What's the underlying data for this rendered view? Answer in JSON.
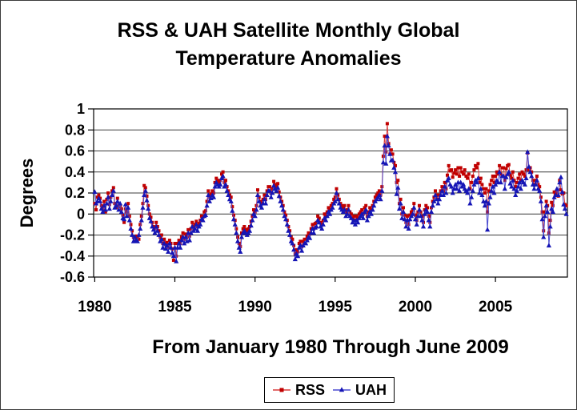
{
  "figure": {
    "title_line1": "RSS & UAH Satellite Monthly Global",
    "title_line2": "Temperature Anomalies",
    "y_axis_title": "Degrees",
    "x_axis_title": "From January 1980 Through June 2009"
  },
  "legend": {
    "items": [
      {
        "label": "RSS",
        "marker": "square",
        "line_color": "#d93a3a",
        "marker_color": "#c00000"
      },
      {
        "label": "UAH",
        "marker": "triangle",
        "line_color": "#4a4ad0",
        "marker_color": "#1515b5"
      }
    ]
  },
  "chart_data": {
    "type": "line",
    "title": "RSS & UAH Satellite Monthly Global Temperature Anomalies",
    "xlabel": "From January 1980 Through June 2009",
    "ylabel": "Degrees",
    "x_unit": "month",
    "x_start": "1980-01",
    "x_end": "2009-06",
    "n_points": 354,
    "x_tick_labels": [
      "1980",
      "1985",
      "1990",
      "1995",
      "2000",
      "2005"
    ],
    "x_tick_month_index": [
      0,
      60,
      120,
      180,
      240,
      300
    ],
    "y_ticks": [
      1,
      0.8,
      0.6,
      0.4,
      0.2,
      0,
      -0.2,
      -0.4,
      -0.6
    ],
    "ylim": [
      -0.6,
      1.0
    ],
    "grid": true,
    "legend_position": "bottom",
    "series": [
      {
        "name": "RSS",
        "marker": "square",
        "line_color": "#d93a3a",
        "marker_color": "#c00000",
        "values": [
          0.1,
          0.04,
          0.16,
          0.18,
          0.15,
          0.08,
          0.05,
          0.12,
          0.02,
          0.14,
          0.2,
          0.09,
          0.16,
          0.22,
          0.25,
          0.1,
          0.06,
          0.15,
          0.08,
          0.07,
          0.05,
          -0.01,
          -0.08,
          0.05,
          0.02,
          0.1,
          -0.02,
          -0.1,
          -0.16,
          -0.22,
          -0.26,
          -0.21,
          -0.22,
          -0.24,
          -0.1,
          -0.02,
          0.1,
          0.27,
          0.25,
          0.17,
          0.08,
          0.0,
          -0.03,
          -0.08,
          -0.12,
          -0.14,
          -0.08,
          -0.12,
          -0.16,
          -0.22,
          -0.2,
          -0.28,
          -0.24,
          -0.29,
          -0.27,
          -0.32,
          -0.25,
          -0.28,
          -0.33,
          -0.44,
          -0.28,
          -0.4,
          -0.28,
          -0.25,
          -0.28,
          -0.22,
          -0.18,
          -0.24,
          -0.19,
          -0.22,
          -0.15,
          -0.21,
          -0.14,
          -0.08,
          -0.12,
          -0.1,
          -0.07,
          -0.12,
          -0.09,
          -0.06,
          -0.02,
          -0.03,
          0.02,
          0.03,
          0.12,
          0.22,
          0.16,
          0.19,
          0.22,
          0.2,
          0.3,
          0.34,
          0.32,
          0.3,
          0.32,
          0.38,
          0.4,
          0.3,
          0.32,
          0.26,
          0.22,
          0.18,
          0.16,
          0.07,
          -0.01,
          -0.06,
          -0.14,
          -0.22,
          -0.28,
          -0.31,
          -0.18,
          -0.14,
          -0.12,
          -0.15,
          -0.16,
          -0.14,
          -0.12,
          -0.07,
          -0.02,
          0.04,
          0.02,
          0.08,
          0.23,
          0.16,
          0.12,
          0.1,
          0.14,
          0.18,
          0.14,
          0.22,
          0.26,
          0.26,
          0.2,
          0.24,
          0.31,
          0.28,
          0.26,
          0.29,
          0.21,
          0.16,
          0.12,
          0.08,
          0.02,
          -0.01,
          -0.06,
          -0.12,
          -0.16,
          -0.22,
          -0.24,
          -0.3,
          -0.38,
          -0.34,
          -0.36,
          -0.28,
          -0.26,
          -0.31,
          -0.26,
          -0.24,
          -0.24,
          -0.21,
          -0.18,
          -0.19,
          -0.14,
          -0.1,
          -0.14,
          -0.09,
          -0.08,
          -0.02,
          -0.04,
          -0.08,
          -0.1,
          -0.06,
          0.0,
          -0.02,
          0.02,
          0.06,
          0.04,
          0.08,
          0.1,
          0.14,
          0.16,
          0.24,
          0.18,
          0.14,
          0.1,
          0.08,
          0.06,
          0.08,
          0.02,
          0.04,
          0.08,
          0.02,
          0.0,
          -0.04,
          -0.02,
          -0.06,
          -0.02,
          -0.04,
          0.0,
          0.02,
          0.04,
          0.0,
          0.06,
          0.08,
          -0.02,
          0.02,
          0.06,
          0.04,
          0.08,
          0.12,
          0.16,
          0.18,
          0.2,
          0.22,
          0.18,
          0.26,
          0.55,
          0.74,
          0.59,
          0.86,
          0.67,
          0.57,
          0.61,
          0.57,
          0.49,
          0.46,
          0.3,
          0.32,
          0.1,
          0.14,
          0.0,
          0.06,
          -0.01,
          -0.08,
          -0.02,
          -0.1,
          -0.01,
          0.02,
          0.04,
          0.1,
          -0.01,
          -0.06,
          0.02,
          0.08,
          0.02,
          -0.02,
          -0.08,
          0.04,
          0.08,
          0.06,
          -0.02,
          -0.08,
          0.06,
          0.12,
          0.16,
          0.22,
          0.18,
          0.14,
          0.18,
          0.22,
          0.26,
          0.22,
          0.3,
          0.24,
          0.37,
          0.46,
          0.41,
          0.42,
          0.35,
          0.39,
          0.42,
          0.38,
          0.44,
          0.36,
          0.44,
          0.4,
          0.38,
          0.42,
          0.36,
          0.34,
          0.38,
          0.24,
          0.3,
          0.36,
          0.42,
          0.46,
          0.44,
          0.48,
          0.3,
          0.34,
          0.28,
          0.24,
          0.2,
          0.24,
          0.02,
          0.22,
          0.28,
          0.32,
          0.36,
          0.3,
          0.36,
          0.4,
          0.38,
          0.46,
          0.38,
          0.44,
          0.44,
          0.32,
          0.43,
          0.46,
          0.47,
          0.37,
          0.34,
          0.4,
          0.32,
          0.26,
          0.3,
          0.34,
          0.38,
          0.32,
          0.4,
          0.38,
          0.36,
          0.42,
          0.58,
          0.42,
          0.44,
          0.4,
          0.32,
          0.28,
          0.32,
          0.36,
          0.28,
          0.26,
          0.16,
          0.02,
          -0.16,
          0.02,
          0.12,
          0.08,
          -0.18,
          -0.06,
          0.11,
          0.08,
          0.21,
          0.2,
          0.22,
          0.17,
          0.32,
          0.23,
          0.19,
          0.2,
          0.09,
          0.08
        ]
      },
      {
        "name": "UAH",
        "marker": "triangle",
        "line_color": "#4a4ad0",
        "marker_color": "#1515b5",
        "values": [
          0.21,
          0.1,
          0.12,
          0.15,
          0.12,
          0.05,
          0.02,
          0.08,
          0.04,
          0.1,
          0.16,
          0.05,
          0.12,
          0.18,
          0.22,
          0.06,
          0.08,
          0.12,
          0.04,
          0.1,
          0.02,
          -0.04,
          -0.05,
          0.09,
          -0.02,
          0.06,
          -0.06,
          -0.14,
          -0.2,
          -0.26,
          -0.22,
          -0.25,
          -0.26,
          -0.2,
          -0.14,
          -0.06,
          0.06,
          0.18,
          0.22,
          0.13,
          0.05,
          -0.04,
          -0.07,
          -0.12,
          -0.15,
          -0.18,
          -0.12,
          -0.16,
          -0.2,
          -0.26,
          -0.24,
          -0.32,
          -0.28,
          -0.33,
          -0.3,
          -0.36,
          -0.28,
          -0.32,
          -0.37,
          -0.4,
          -0.32,
          -0.45,
          -0.32,
          -0.28,
          -0.32,
          -0.25,
          -0.22,
          -0.28,
          -0.22,
          -0.26,
          -0.18,
          -0.25,
          -0.18,
          -0.12,
          -0.16,
          -0.14,
          -0.1,
          -0.16,
          -0.12,
          -0.1,
          -0.05,
          -0.06,
          -0.02,
          -0.01,
          0.08,
          0.18,
          0.12,
          0.15,
          0.18,
          0.16,
          0.26,
          0.3,
          0.28,
          0.26,
          0.28,
          0.34,
          0.36,
          0.26,
          0.28,
          0.22,
          0.18,
          0.14,
          0.12,
          0.03,
          -0.05,
          -0.1,
          -0.18,
          -0.26,
          -0.32,
          -0.36,
          -0.22,
          -0.18,
          -0.16,
          -0.18,
          -0.2,
          -0.18,
          -0.16,
          -0.11,
          -0.06,
          0.0,
          -0.02,
          0.04,
          0.18,
          0.12,
          0.08,
          0.06,
          0.1,
          0.14,
          0.1,
          0.18,
          0.22,
          0.22,
          0.16,
          0.2,
          0.27,
          0.24,
          0.22,
          0.25,
          0.17,
          0.12,
          0.08,
          0.04,
          -0.02,
          -0.05,
          -0.1,
          -0.16,
          -0.2,
          -0.26,
          -0.28,
          -0.34,
          -0.43,
          -0.38,
          -0.4,
          -0.32,
          -0.3,
          -0.35,
          -0.3,
          -0.28,
          -0.28,
          -0.25,
          -0.22,
          -0.23,
          -0.18,
          -0.14,
          -0.18,
          -0.13,
          -0.12,
          -0.06,
          -0.08,
          -0.12,
          -0.14,
          -0.1,
          -0.04,
          -0.06,
          -0.02,
          0.02,
          0.0,
          0.04,
          0.06,
          0.1,
          0.12,
          0.2,
          0.14,
          0.1,
          0.06,
          0.04,
          0.02,
          0.04,
          -0.02,
          0.0,
          0.04,
          -0.02,
          -0.04,
          -0.08,
          -0.06,
          -0.1,
          -0.06,
          -0.08,
          -0.04,
          -0.02,
          0.0,
          -0.04,
          0.02,
          0.04,
          -0.06,
          -0.02,
          0.02,
          0.0,
          0.04,
          0.08,
          0.12,
          0.14,
          0.16,
          0.18,
          0.14,
          0.22,
          0.49,
          0.65,
          0.48,
          0.74,
          0.65,
          0.57,
          0.51,
          0.51,
          0.44,
          0.4,
          0.19,
          0.25,
          0.05,
          0.1,
          -0.04,
          0.02,
          -0.05,
          -0.12,
          -0.06,
          -0.14,
          -0.05,
          -0.02,
          0.0,
          0.06,
          -0.05,
          -0.1,
          -0.02,
          0.04,
          -0.02,
          -0.06,
          -0.12,
          0.0,
          0.04,
          0.02,
          -0.06,
          -0.12,
          0.02,
          0.08,
          0.12,
          0.18,
          0.14,
          0.1,
          0.14,
          0.18,
          0.22,
          0.18,
          0.26,
          0.2,
          0.32,
          0.34,
          0.28,
          0.26,
          0.2,
          0.24,
          0.28,
          0.24,
          0.3,
          0.22,
          0.3,
          0.26,
          0.28,
          0.24,
          0.22,
          0.2,
          0.24,
          0.1,
          0.16,
          0.22,
          0.28,
          0.32,
          0.3,
          0.34,
          0.2,
          0.24,
          0.18,
          0.12,
          0.08,
          0.12,
          -0.15,
          0.1,
          0.16,
          0.22,
          0.26,
          0.2,
          0.28,
          0.32,
          0.3,
          0.4,
          0.3,
          0.36,
          0.36,
          0.24,
          0.35,
          0.38,
          0.4,
          0.29,
          0.26,
          0.32,
          0.24,
          0.18,
          0.22,
          0.26,
          0.3,
          0.24,
          0.32,
          0.3,
          0.28,
          0.34,
          0.59,
          0.45,
          0.4,
          0.36,
          0.28,
          0.24,
          0.28,
          0.32,
          0.24,
          0.22,
          0.12,
          -0.05,
          -0.22,
          -0.02,
          0.08,
          0.02,
          -0.3,
          -0.12,
          0.05,
          0.02,
          0.16,
          0.18,
          0.24,
          0.18,
          0.3,
          0.35,
          0.21,
          0.09,
          0.05,
          0.0
        ]
      }
    ]
  }
}
